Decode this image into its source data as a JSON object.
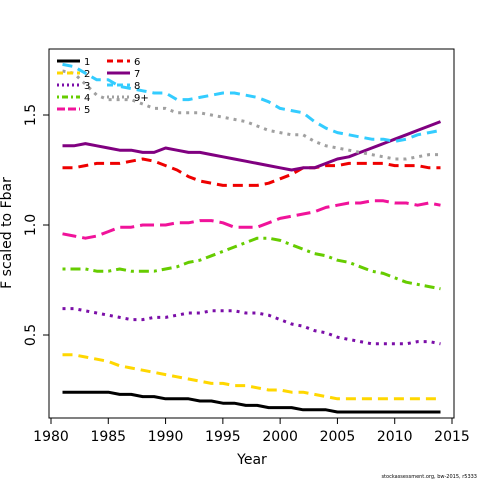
{
  "credit": "stockassessment.org, bw-2015, r5333",
  "chart_data": {
    "type": "line",
    "title": "",
    "xlabel": "Year",
    "ylabel": "F scaled to Fbar",
    "xlim": [
      1980,
      2015
    ],
    "ylim": [
      0.1,
      1.75
    ],
    "xticks": [
      "1980",
      "1985",
      "1990",
      "1995",
      "2000",
      "2005",
      "2010",
      "2015"
    ],
    "yticks": [
      "0.5",
      "1.0",
      "1.5"
    ],
    "grid": false,
    "legend_position": "top-left",
    "x": [
      1981,
      1982,
      1983,
      1984,
      1985,
      1986,
      1987,
      1988,
      1989,
      1990,
      1991,
      1992,
      1993,
      1994,
      1995,
      1996,
      1997,
      1998,
      1999,
      2000,
      2001,
      2002,
      2003,
      2004,
      2005,
      2006,
      2007,
      2008,
      2009,
      2010,
      2011,
      2012,
      2013,
      2014
    ],
    "series": [
      {
        "name": "1",
        "color": "#000000",
        "dash": "solid",
        "values": [
          0.24,
          0.24,
          0.24,
          0.24,
          0.24,
          0.23,
          0.23,
          0.22,
          0.22,
          0.21,
          0.21,
          0.21,
          0.2,
          0.2,
          0.19,
          0.19,
          0.18,
          0.18,
          0.17,
          0.17,
          0.17,
          0.16,
          0.16,
          0.16,
          0.15,
          0.15,
          0.15,
          0.15,
          0.15,
          0.15,
          0.15,
          0.15,
          0.15,
          0.15
        ]
      },
      {
        "name": "2",
        "color": "#FFD700",
        "dash": "dashed",
        "values": [
          0.41,
          0.41,
          0.4,
          0.39,
          0.38,
          0.36,
          0.35,
          0.34,
          0.33,
          0.32,
          0.31,
          0.3,
          0.29,
          0.28,
          0.28,
          0.27,
          0.27,
          0.26,
          0.25,
          0.25,
          0.24,
          0.24,
          0.23,
          0.22,
          0.21,
          0.21,
          0.21,
          0.21,
          0.21,
          0.21,
          0.21,
          0.21,
          0.21,
          0.21
        ]
      },
      {
        "name": "3",
        "color": "#7B0EA8",
        "dash": "dotted",
        "values": [
          0.62,
          0.62,
          0.61,
          0.6,
          0.59,
          0.58,
          0.57,
          0.57,
          0.58,
          0.58,
          0.59,
          0.6,
          0.6,
          0.61,
          0.61,
          0.61,
          0.6,
          0.6,
          0.59,
          0.57,
          0.55,
          0.54,
          0.52,
          0.51,
          0.49,
          0.48,
          0.47,
          0.46,
          0.46,
          0.46,
          0.46,
          0.47,
          0.47,
          0.46
        ]
      },
      {
        "name": "4",
        "color": "#66CC00",
        "dash": "dotdash",
        "values": [
          0.8,
          0.8,
          0.8,
          0.79,
          0.79,
          0.8,
          0.79,
          0.79,
          0.79,
          0.8,
          0.81,
          0.83,
          0.84,
          0.86,
          0.88,
          0.9,
          0.92,
          0.94,
          0.94,
          0.93,
          0.91,
          0.89,
          0.87,
          0.86,
          0.84,
          0.83,
          0.81,
          0.79,
          0.78,
          0.76,
          0.74,
          0.73,
          0.72,
          0.71
        ]
      },
      {
        "name": "5",
        "color": "#F0139A",
        "dash": "longdash",
        "values": [
          0.96,
          0.95,
          0.94,
          0.95,
          0.97,
          0.99,
          0.99,
          1.0,
          1.0,
          1.0,
          1.01,
          1.01,
          1.02,
          1.02,
          1.01,
          0.99,
          0.99,
          0.99,
          1.01,
          1.03,
          1.04,
          1.05,
          1.06,
          1.08,
          1.09,
          1.1,
          1.1,
          1.11,
          1.11,
          1.1,
          1.1,
          1.09,
          1.1,
          1.09
        ]
      },
      {
        "name": "6",
        "color": "#EE0000",
        "dash": "dashed",
        "values": [
          1.26,
          1.26,
          1.27,
          1.28,
          1.28,
          1.28,
          1.29,
          1.3,
          1.29,
          1.27,
          1.25,
          1.22,
          1.2,
          1.19,
          1.18,
          1.18,
          1.18,
          1.18,
          1.19,
          1.21,
          1.23,
          1.26,
          1.26,
          1.27,
          1.27,
          1.28,
          1.28,
          1.28,
          1.28,
          1.27,
          1.27,
          1.27,
          1.26,
          1.26
        ]
      },
      {
        "name": "7",
        "color": "#800080",
        "dash": "solid",
        "values": [
          1.36,
          1.36,
          1.37,
          1.36,
          1.35,
          1.34,
          1.34,
          1.33,
          1.33,
          1.35,
          1.34,
          1.33,
          1.33,
          1.32,
          1.31,
          1.3,
          1.29,
          1.28,
          1.27,
          1.26,
          1.25,
          1.26,
          1.26,
          1.28,
          1.3,
          1.31,
          1.33,
          1.35,
          1.37,
          1.39,
          1.41,
          1.43,
          1.45,
          1.47
        ]
      },
      {
        "name": "8",
        "color": "#33CCFF",
        "dash": "dashed",
        "values": [
          1.73,
          1.72,
          1.69,
          1.66,
          1.66,
          1.63,
          1.62,
          1.61,
          1.6,
          1.6,
          1.57,
          1.57,
          1.58,
          1.59,
          1.6,
          1.6,
          1.59,
          1.58,
          1.56,
          1.53,
          1.52,
          1.51,
          1.47,
          1.44,
          1.42,
          1.41,
          1.4,
          1.39,
          1.39,
          1.38,
          1.39,
          1.41,
          1.42,
          1.43
        ]
      },
      {
        "name": "9+",
        "color": "#A0A0A0",
        "dash": "dotted",
        "values": [
          1.7,
          1.69,
          1.64,
          1.59,
          1.57,
          1.57,
          1.57,
          1.55,
          1.53,
          1.53,
          1.51,
          1.51,
          1.51,
          1.5,
          1.49,
          1.48,
          1.47,
          1.45,
          1.43,
          1.42,
          1.41,
          1.41,
          1.38,
          1.36,
          1.35,
          1.34,
          1.33,
          1.32,
          1.31,
          1.3,
          1.3,
          1.31,
          1.32,
          1.32
        ]
      }
    ]
  }
}
